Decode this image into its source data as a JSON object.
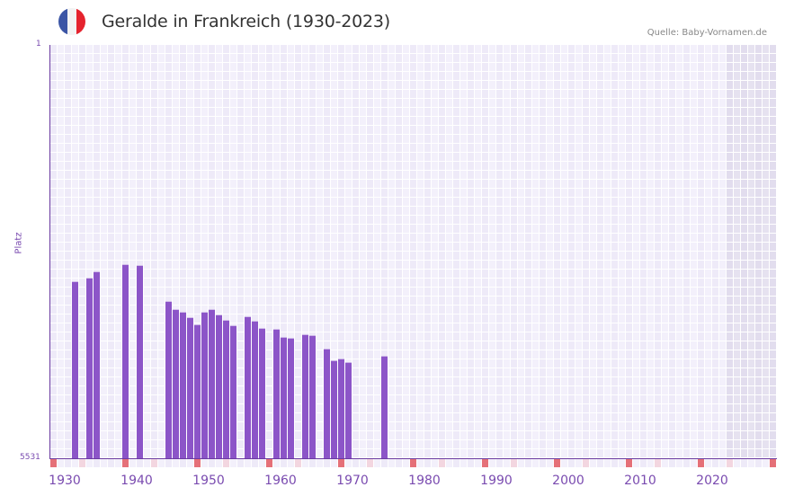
{
  "header": {
    "title": "Geralde in Frankreich (1930-2023)",
    "source": "Quelle: Baby-Vornamen.de",
    "flag_colors": [
      "#3b55a5",
      "#f3f3f3",
      "#e5232e"
    ]
  },
  "colors": {
    "bar": "#8c55c8",
    "axis": "#6a3aa0",
    "grid_a": "#eeeaf8",
    "grid_b": "#f3f0fb",
    "grid_line": "#ffffff",
    "shaded_a": "#e2ddee",
    "shaded_b": "#e6e2f0",
    "marker_decade": "#e57078",
    "marker_half": "#f3d6e0",
    "marker_other_a": "#eeeaf8",
    "marker_other_b": "#f3f0fb"
  },
  "chart_data": {
    "type": "bar",
    "title": "Geralde in Frankreich (1930-2023)",
    "xlabel": "",
    "ylabel": "Platz",
    "y_inverted": true,
    "ylim": [
      1,
      5531
    ],
    "y_ticks": [
      "1",
      "5531"
    ],
    "x_range": [
      1930,
      2030
    ],
    "x_ticks": [
      "1930",
      "1940",
      "1950",
      "1960",
      "1970",
      "1980",
      "1990",
      "2000",
      "2010",
      "2020"
    ],
    "shaded_region_from_year": 2024,
    "grid": true,
    "years": [
      1933,
      1935,
      1936,
      1940,
      1942,
      1946,
      1947,
      1948,
      1949,
      1950,
      1951,
      1952,
      1953,
      1954,
      1955,
      1957,
      1958,
      1959,
      1961,
      1962,
      1963,
      1965,
      1966,
      1968,
      1969,
      1970,
      1971,
      1976
    ],
    "ranks": [
      3171,
      3123,
      3039,
      2943,
      2955,
      3436,
      3544,
      3580,
      3652,
      3748,
      3580,
      3544,
      3616,
      3688,
      3760,
      3640,
      3700,
      3796,
      3808,
      3916,
      3928,
      3880,
      3892,
      4072,
      4228,
      4204,
      4252,
      4168
    ]
  }
}
